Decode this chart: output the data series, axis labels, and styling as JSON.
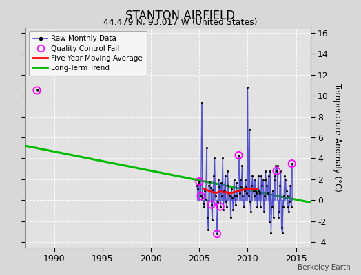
{
  "title": "STANTON AIRFIELD",
  "subtitle": "44.479 N, 93.017 W (United States)",
  "ylabel_right": "Temperature Anomaly (°C)",
  "watermark": "Berkeley Earth",
  "xlim": [
    1987.0,
    2016.5
  ],
  "ylim": [
    -4.5,
    16.5
  ],
  "yticks": [
    -4,
    -2,
    0,
    2,
    4,
    6,
    8,
    10,
    12,
    14,
    16
  ],
  "xticks": [
    1990,
    1995,
    2000,
    2005,
    2010,
    2015
  ],
  "bg_color": "#d8d8d8",
  "plot_bg_color": "#e2e2e2",
  "grid_color": "#ffffff",
  "raw_line_color": "#4444cc",
  "raw_dot_color": "#000000",
  "qc_fail_color": "#ff00ff",
  "moving_avg_color": "#ff0000",
  "trend_color": "#00bb00",
  "isolated_qc_point": [
    1988.2,
    10.5
  ],
  "raw_monthly_data": [
    [
      2004.75,
      1.4
    ],
    [
      2004.83,
      1.1
    ],
    [
      2004.92,
      1.6
    ],
    [
      2005.0,
      1.8
    ],
    [
      2005.08,
      1.5
    ],
    [
      2005.17,
      0.4
    ],
    [
      2005.25,
      9.3
    ],
    [
      2005.33,
      0.2
    ],
    [
      2005.42,
      -0.3
    ],
    [
      2005.5,
      -0.6
    ],
    [
      2005.58,
      0.9
    ],
    [
      2005.67,
      0.1
    ],
    [
      2005.75,
      5.0
    ],
    [
      2005.83,
      -1.6
    ],
    [
      2005.92,
      -2.8
    ],
    [
      2006.0,
      1.4
    ],
    [
      2006.08,
      1.8
    ],
    [
      2006.17,
      1.2
    ],
    [
      2006.25,
      -0.4
    ],
    [
      2006.33,
      -1.9
    ],
    [
      2006.42,
      1.0
    ],
    [
      2006.5,
      2.3
    ],
    [
      2006.58,
      4.0
    ],
    [
      2006.67,
      0.4
    ],
    [
      2006.75,
      -0.6
    ],
    [
      2006.83,
      -3.2
    ],
    [
      2006.92,
      -0.2
    ],
    [
      2007.0,
      1.9
    ],
    [
      2007.08,
      1.3
    ],
    [
      2007.17,
      -0.6
    ],
    [
      2007.25,
      1.7
    ],
    [
      2007.33,
      0.4
    ],
    [
      2007.42,
      4.0
    ],
    [
      2007.5,
      -0.9
    ],
    [
      2007.58,
      0.9
    ],
    [
      2007.67,
      2.3
    ],
    [
      2007.75,
      -0.1
    ],
    [
      2007.83,
      -0.6
    ],
    [
      2007.92,
      2.8
    ],
    [
      2008.0,
      1.4
    ],
    [
      2008.08,
      0.7
    ],
    [
      2008.17,
      0.4
    ],
    [
      2008.25,
      -1.6
    ],
    [
      2008.33,
      1.1
    ],
    [
      2008.42,
      0.2
    ],
    [
      2008.5,
      -0.9
    ],
    [
      2008.58,
      1.9
    ],
    [
      2008.67,
      0.4
    ],
    [
      2008.75,
      -0.4
    ],
    [
      2008.83,
      1.7
    ],
    [
      2008.92,
      0.4
    ],
    [
      2009.0,
      0.9
    ],
    [
      2009.08,
      4.3
    ],
    [
      2009.17,
      0.7
    ],
    [
      2009.25,
      1.9
    ],
    [
      2009.33,
      1.3
    ],
    [
      2009.42,
      3.3
    ],
    [
      2009.5,
      0.4
    ],
    [
      2009.58,
      -0.6
    ],
    [
      2009.67,
      0.9
    ],
    [
      2009.75,
      1.9
    ],
    [
      2009.83,
      1.3
    ],
    [
      2009.92,
      0.7
    ],
    [
      2010.0,
      10.8
    ],
    [
      2010.08,
      0.4
    ],
    [
      2010.17,
      6.8
    ],
    [
      2010.25,
      -0.1
    ],
    [
      2010.33,
      -1.1
    ],
    [
      2010.42,
      1.4
    ],
    [
      2010.5,
      2.3
    ],
    [
      2010.58,
      0.9
    ],
    [
      2010.67,
      0.4
    ],
    [
      2010.75,
      1.9
    ],
    [
      2010.83,
      0.9
    ],
    [
      2010.92,
      0.7
    ],
    [
      2011.0,
      -0.6
    ],
    [
      2011.08,
      2.3
    ],
    [
      2011.17,
      0.9
    ],
    [
      2011.25,
      0.7
    ],
    [
      2011.33,
      -0.6
    ],
    [
      2011.42,
      2.3
    ],
    [
      2011.5,
      1.4
    ],
    [
      2011.58,
      1.9
    ],
    [
      2011.67,
      -1.1
    ],
    [
      2011.75,
      0.4
    ],
    [
      2011.83,
      2.8
    ],
    [
      2011.92,
      1.9
    ],
    [
      2012.0,
      1.4
    ],
    [
      2012.08,
      0.7
    ],
    [
      2012.17,
      2.3
    ],
    [
      2012.25,
      -2.1
    ],
    [
      2012.33,
      2.8
    ],
    [
      2012.42,
      -3.1
    ],
    [
      2012.5,
      -0.6
    ],
    [
      2012.58,
      0.9
    ],
    [
      2012.67,
      -1.6
    ],
    [
      2012.75,
      1.9
    ],
    [
      2012.83,
      2.3
    ],
    [
      2012.92,
      3.3
    ],
    [
      2013.0,
      2.8
    ],
    [
      2013.08,
      3.3
    ],
    [
      2013.17,
      -1.6
    ],
    [
      2013.25,
      -1.1
    ],
    [
      2013.33,
      1.4
    ],
    [
      2013.42,
      2.8
    ],
    [
      2013.5,
      -2.6
    ],
    [
      2013.58,
      -3.1
    ],
    [
      2013.67,
      -0.6
    ],
    [
      2013.75,
      0.4
    ],
    [
      2013.83,
      2.3
    ],
    [
      2013.92,
      1.9
    ],
    [
      2014.0,
      0.9
    ],
    [
      2014.08,
      0.4
    ],
    [
      2014.17,
      -0.6
    ],
    [
      2014.25,
      -1.1
    ],
    [
      2014.33,
      -0.1
    ],
    [
      2014.42,
      1.4
    ],
    [
      2014.5,
      -0.6
    ],
    [
      2014.58,
      3.5
    ]
  ],
  "qc_fail_points": [
    [
      2005.0,
      1.8
    ],
    [
      2005.17,
      0.4
    ],
    [
      2006.25,
      -0.4
    ],
    [
      2006.83,
      -3.2
    ],
    [
      2007.17,
      -0.6
    ],
    [
      2009.08,
      4.3
    ],
    [
      2013.0,
      2.8
    ],
    [
      2014.58,
      3.5
    ]
  ],
  "moving_avg": [
    [
      2005.5,
      1.1
    ],
    [
      2005.75,
      1.0
    ],
    [
      2006.0,
      0.9
    ],
    [
      2006.25,
      0.8
    ],
    [
      2006.5,
      0.75
    ],
    [
      2006.75,
      0.7
    ],
    [
      2007.0,
      0.8
    ],
    [
      2007.25,
      0.85
    ],
    [
      2007.5,
      0.75
    ],
    [
      2007.75,
      0.8
    ],
    [
      2008.0,
      0.65
    ],
    [
      2008.25,
      0.7
    ],
    [
      2008.5,
      0.75
    ],
    [
      2008.75,
      0.8
    ],
    [
      2009.0,
      0.9
    ],
    [
      2009.25,
      0.95
    ],
    [
      2009.5,
      1.0
    ],
    [
      2009.75,
      1.05
    ],
    [
      2010.0,
      1.1
    ],
    [
      2010.25,
      1.15
    ],
    [
      2010.5,
      1.1
    ],
    [
      2010.75,
      1.05
    ],
    [
      2011.0,
      1.1
    ]
  ],
  "trend_x": [
    1987.0,
    2016.5
  ],
  "trend_y": [
    5.2,
    -0.2
  ]
}
